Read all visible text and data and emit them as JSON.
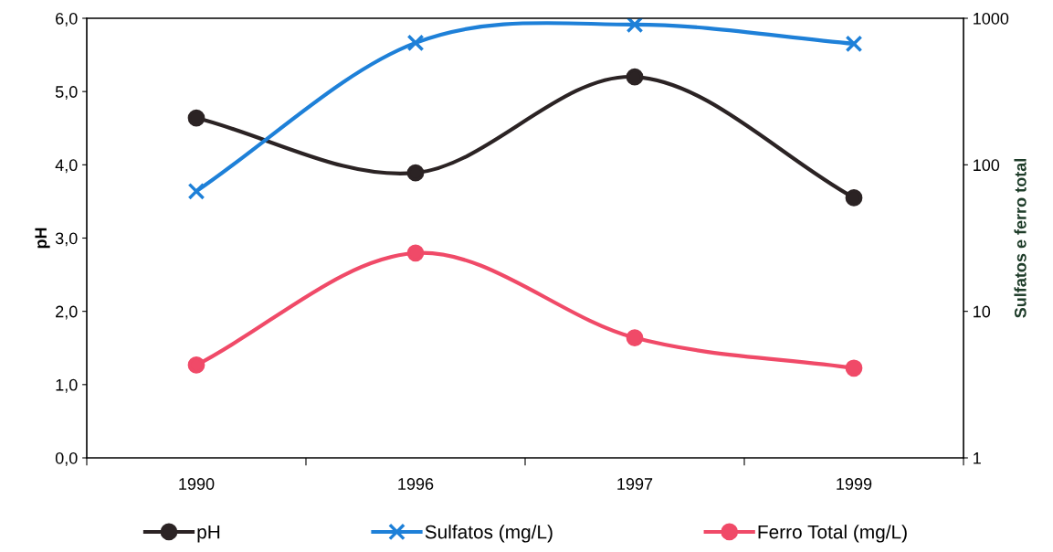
{
  "chart_data": {
    "type": "line",
    "ylabel": "pH",
    "y2label": "Sulfatos e ferro total",
    "categories": [
      "1990",
      "1996",
      "1997",
      "1999"
    ],
    "ylim": [
      0,
      6
    ],
    "yticks": [
      {
        "value": 0,
        "label": "0,0"
      },
      {
        "value": 1,
        "label": "1,0"
      },
      {
        "value": 2,
        "label": "2,0"
      },
      {
        "value": 3,
        "label": "3,0"
      },
      {
        "value": 4,
        "label": "4,0"
      },
      {
        "value": 5,
        "label": "5,0"
      },
      {
        "value": 6,
        "label": "6,0"
      }
    ],
    "log": "y2",
    "y2lim": [
      1,
      1000
    ],
    "y2ticks": [
      1,
      10,
      100,
      1000
    ],
    "grid": false,
    "legend": "bottom",
    "line_style": "solid",
    "series": [
      {
        "name": "pH",
        "color": "#2b2324",
        "marker": "circle",
        "values": [
          4.64,
          3.89,
          5.2,
          3.55
        ]
      },
      {
        "name": "Sulfatos (mg/L)",
        "color": "#1e80d8",
        "marker": "cross",
        "axis": "y2",
        "values": [
          66,
          680,
          906,
          670
        ]
      },
      {
        "name": "Ferro Total (mg/L)",
        "color": "#f04a68",
        "marker": "circle",
        "axis": "y2",
        "values": [
          4.3,
          25,
          6.6,
          4.1
        ]
      }
    ]
  }
}
